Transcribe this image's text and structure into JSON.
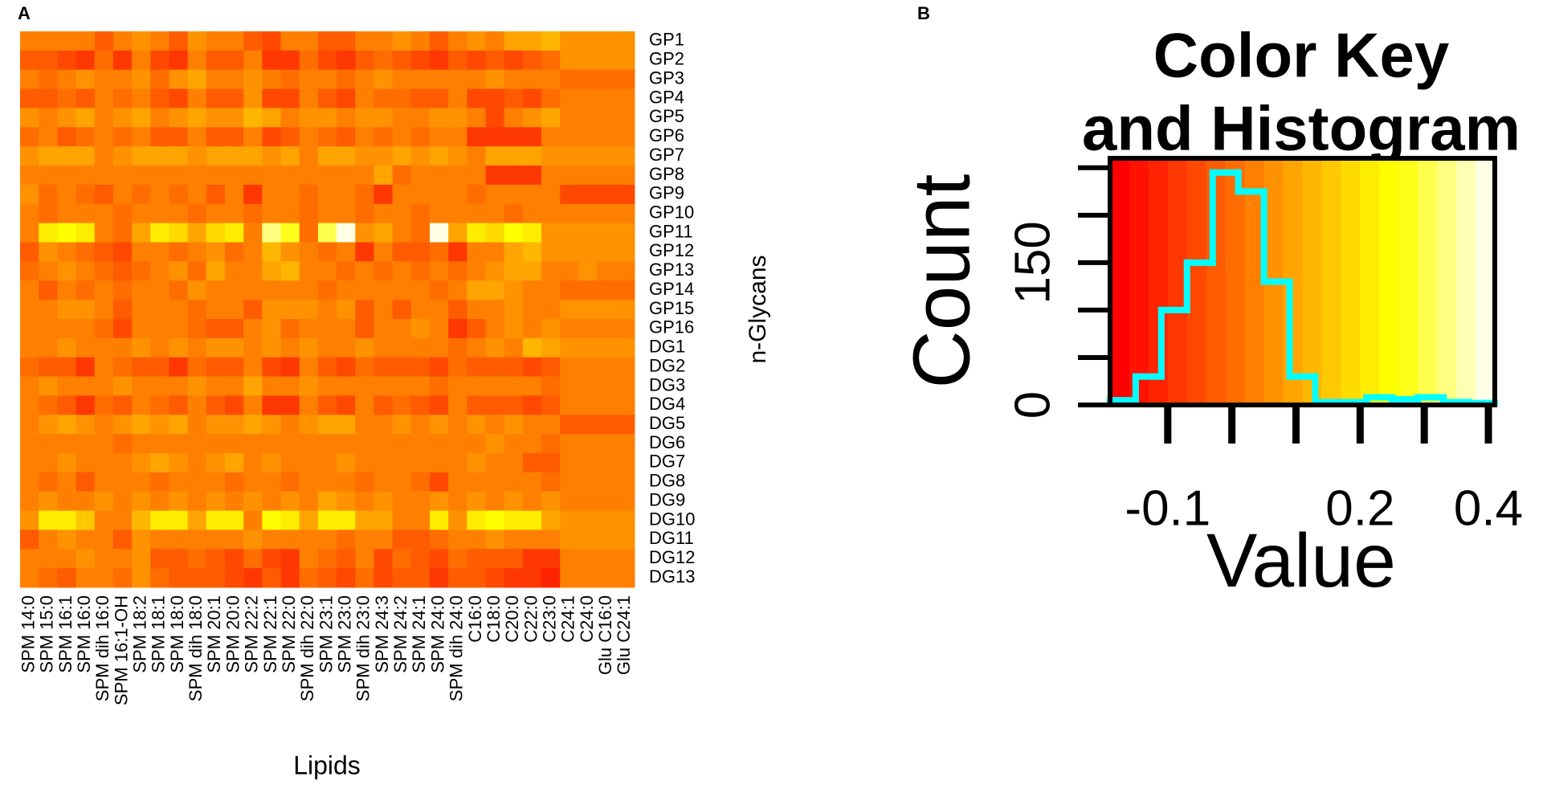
{
  "chart_data": [
    {
      "type": "heatmap",
      "panel_label": "A",
      "xlabel": "Lipids",
      "ylabel": "n-Glycans",
      "x_categories": [
        "SPM 14:0",
        "SPM 15:0",
        "SPM 16:1",
        "SPM 16:0",
        "SPM dih 16:0",
        "SPM 16:1-OH",
        "SPM 18:2",
        "SPM 18:1",
        "SPM 18:0",
        "SPM dih 18:0",
        "SPM 20:1",
        "SPM 20:0",
        "SPM 22:2",
        "SPM 22:1",
        "SPM 22:0",
        "SPM dih 22:0",
        "SPM 23:1",
        "SPM 23:0",
        "SPM dih 23:0",
        "SPM 24:3",
        "SPM 24:2",
        "SPM 24:1",
        "SPM 24:0",
        "SPM dih 24:0",
        "C16:0",
        "C18:0",
        "C20:0",
        "C22:0",
        "C23:0",
        "C24:1",
        "C24:0",
        "Glu C16:0",
        "Glu C24:1"
      ],
      "y_categories": [
        "GP1",
        "GP2",
        "GP3",
        "GP4",
        "GP5",
        "GP6",
        "GP7",
        "GP8",
        "GP9",
        "GP10",
        "GP11",
        "GP12",
        "GP13",
        "GP14",
        "GP15",
        "GP16",
        "DG1",
        "DG2",
        "DG3",
        "DG4",
        "DG5",
        "DG6",
        "DG7",
        "DG8",
        "DG9",
        "DG10",
        "DG11",
        "DG12",
        "DG13"
      ],
      "values": [
        [
          0.02,
          0.04,
          0.02,
          0.02,
          -0.02,
          0.04,
          0.05,
          0.02,
          -0.02,
          0.05,
          0.02,
          0.02,
          -0.03,
          -0.06,
          0.02,
          0.04,
          -0.03,
          -0.04,
          0.02,
          0.04,
          0.05,
          0.02,
          -0.02,
          0.04,
          0.06,
          0.02,
          0.08,
          0.1,
          0.11,
          0.06,
          0.06,
          0.06,
          0.06
        ],
        [
          -0.04,
          -0.03,
          -0.06,
          -0.1,
          0.0,
          -0.08,
          0.02,
          -0.06,
          -0.1,
          0.03,
          -0.04,
          -0.02,
          0.02,
          -0.09,
          -0.1,
          0.0,
          -0.05,
          -0.1,
          -0.02,
          0.0,
          -0.04,
          -0.06,
          -0.1,
          -0.04,
          -0.06,
          -0.04,
          -0.05,
          -0.03,
          0.0,
          0.06,
          0.06,
          0.06,
          0.06
        ],
        [
          0.04,
          0.0,
          0.04,
          0.06,
          0.02,
          0.04,
          0.06,
          0.0,
          0.06,
          0.08,
          0.02,
          0.04,
          0.07,
          0.02,
          0.0,
          0.04,
          0.02,
          0.0,
          0.04,
          0.05,
          0.02,
          0.02,
          0.04,
          0.02,
          0.04,
          0.06,
          0.02,
          0.04,
          0.02,
          0.0,
          0.0,
          0.0,
          0.0
        ],
        [
          -0.02,
          -0.02,
          0.0,
          -0.04,
          0.02,
          0.0,
          0.02,
          -0.02,
          -0.07,
          0.04,
          -0.04,
          -0.04,
          0.06,
          -0.07,
          -0.05,
          0.02,
          -0.03,
          -0.06,
          0.02,
          0.0,
          0.0,
          -0.02,
          -0.04,
          0.02,
          -0.06,
          -0.06,
          -0.03,
          -0.06,
          0.0,
          0.03,
          0.03,
          0.03,
          0.03
        ],
        [
          0.06,
          0.04,
          0.06,
          0.1,
          0.04,
          0.06,
          0.08,
          0.04,
          0.06,
          0.1,
          0.06,
          0.06,
          0.12,
          0.08,
          0.04,
          0.06,
          0.06,
          0.04,
          0.06,
          0.06,
          0.04,
          0.04,
          0.06,
          0.06,
          0.04,
          -0.06,
          0.04,
          0.06,
          0.08,
          0.04,
          0.04,
          0.04,
          0.04
        ],
        [
          0.0,
          0.02,
          -0.02,
          0.0,
          0.04,
          0.0,
          0.02,
          -0.02,
          -0.04,
          0.04,
          -0.02,
          -0.02,
          0.04,
          -0.06,
          -0.04,
          0.02,
          0.0,
          -0.04,
          0.02,
          0.0,
          0.02,
          0.0,
          0.04,
          0.02,
          -0.08,
          -0.1,
          -0.08,
          -0.1,
          0.02,
          0.04,
          0.04,
          0.04,
          0.04
        ],
        [
          0.06,
          0.1,
          0.1,
          0.08,
          0.04,
          0.06,
          0.08,
          0.1,
          0.1,
          0.06,
          0.08,
          0.1,
          0.08,
          0.06,
          0.08,
          0.04,
          0.08,
          0.1,
          0.06,
          0.06,
          0.08,
          0.06,
          0.08,
          0.06,
          0.04,
          0.1,
          0.1,
          0.1,
          0.06,
          0.06,
          0.06,
          0.06,
          0.06
        ],
        [
          0.04,
          0.02,
          0.04,
          0.02,
          0.04,
          0.02,
          0.02,
          0.04,
          0.02,
          0.04,
          0.04,
          0.02,
          0.04,
          0.04,
          0.02,
          0.02,
          0.04,
          0.02,
          0.04,
          0.08,
          0.0,
          0.02,
          0.04,
          0.02,
          0.02,
          -0.08,
          -0.1,
          -0.08,
          0.02,
          0.02,
          0.02,
          0.02,
          0.02
        ],
        [
          0.06,
          0.0,
          0.02,
          0.0,
          -0.04,
          0.04,
          0.0,
          0.04,
          0.0,
          0.02,
          -0.02,
          0.02,
          -0.08,
          0.02,
          0.04,
          0.0,
          0.04,
          0.02,
          0.0,
          -0.08,
          0.04,
          0.02,
          0.04,
          0.02,
          0.0,
          0.04,
          0.04,
          0.02,
          0.02,
          -0.05,
          -0.05,
          -0.05,
          -0.05
        ],
        [
          0.04,
          0.0,
          0.04,
          0.02,
          0.04,
          0.0,
          0.02,
          0.04,
          0.02,
          0.0,
          0.04,
          0.02,
          0.0,
          0.04,
          0.02,
          0.0,
          0.04,
          0.02,
          0.0,
          0.04,
          0.02,
          0.0,
          0.04,
          0.02,
          0.04,
          0.02,
          0.0,
          0.04,
          0.02,
          0.03,
          0.03,
          0.03,
          0.03
        ],
        [
          0.04,
          0.2,
          0.24,
          0.2,
          0.02,
          0.0,
          0.08,
          0.2,
          0.18,
          0.08,
          0.18,
          0.22,
          0.04,
          0.32,
          0.28,
          0.0,
          0.3,
          0.4,
          0.06,
          0.1,
          0.02,
          0.0,
          0.4,
          0.08,
          0.2,
          0.18,
          0.24,
          0.22,
          0.06,
          0.06,
          0.06,
          0.06,
          0.06
        ],
        [
          -0.04,
          0.06,
          0.04,
          0.0,
          -0.02,
          -0.06,
          0.04,
          0.02,
          0.0,
          0.04,
          0.06,
          0.0,
          0.04,
          0.12,
          0.06,
          0.02,
          0.0,
          0.04,
          -0.08,
          0.04,
          -0.02,
          -0.04,
          0.0,
          -0.08,
          0.04,
          0.02,
          0.08,
          0.12,
          0.06,
          0.06,
          0.06,
          0.06,
          0.06
        ],
        [
          0.0,
          0.04,
          0.06,
          0.02,
          0.0,
          -0.04,
          0.0,
          0.02,
          0.06,
          0.0,
          0.08,
          0.02,
          0.02,
          0.1,
          0.12,
          0.04,
          0.02,
          0.0,
          0.04,
          0.0,
          0.02,
          0.0,
          0.04,
          0.0,
          0.04,
          0.06,
          0.1,
          0.08,
          0.04,
          0.04,
          0.06,
          0.04,
          0.04
        ],
        [
          0.02,
          -0.04,
          0.02,
          0.0,
          0.04,
          0.0,
          0.04,
          0.04,
          0.0,
          0.06,
          0.04,
          0.02,
          0.04,
          0.02,
          0.04,
          0.02,
          0.0,
          0.02,
          0.04,
          0.02,
          0.04,
          0.02,
          0.0,
          0.04,
          0.08,
          0.1,
          0.06,
          0.04,
          0.02,
          0.0,
          0.0,
          0.0,
          0.0
        ],
        [
          0.04,
          0.04,
          0.06,
          0.06,
          0.04,
          -0.04,
          0.04,
          0.02,
          0.04,
          0.0,
          0.02,
          0.04,
          -0.02,
          0.06,
          0.06,
          0.06,
          0.04,
          0.06,
          -0.02,
          0.02,
          -0.02,
          0.02,
          0.04,
          -0.02,
          0.04,
          0.04,
          0.06,
          0.04,
          0.02,
          0.06,
          0.06,
          0.06,
          0.06
        ],
        [
          0.02,
          0.04,
          0.04,
          0.02,
          0.0,
          -0.06,
          0.04,
          0.02,
          0.04,
          0.0,
          -0.02,
          -0.02,
          0.04,
          0.06,
          0.0,
          0.02,
          0.04,
          0.04,
          -0.04,
          0.02,
          0.04,
          0.06,
          0.04,
          -0.08,
          -0.04,
          0.04,
          0.06,
          0.02,
          0.06,
          0.04,
          0.04,
          0.04,
          0.04
        ],
        [
          0.04,
          0.04,
          0.06,
          0.04,
          0.02,
          0.04,
          0.06,
          0.04,
          0.06,
          0.04,
          0.06,
          0.06,
          0.04,
          0.06,
          0.04,
          0.06,
          0.02,
          0.04,
          0.06,
          0.04,
          0.02,
          0.04,
          0.04,
          0.0,
          0.04,
          0.06,
          0.04,
          0.12,
          0.08,
          0.06,
          0.06,
          0.06,
          0.06
        ],
        [
          0.0,
          -0.02,
          -0.04,
          -0.08,
          0.02,
          0.0,
          -0.02,
          -0.04,
          -0.08,
          0.0,
          -0.04,
          -0.04,
          0.04,
          -0.06,
          -0.08,
          0.02,
          -0.04,
          -0.06,
          0.0,
          -0.04,
          -0.02,
          -0.04,
          -0.06,
          0.0,
          -0.02,
          -0.04,
          -0.04,
          -0.06,
          -0.02,
          0.02,
          0.02,
          0.02,
          0.02
        ],
        [
          0.04,
          0.06,
          0.04,
          0.02,
          0.04,
          0.06,
          0.04,
          0.02,
          0.04,
          0.06,
          0.04,
          0.02,
          0.08,
          0.04,
          0.02,
          0.06,
          0.04,
          0.02,
          0.04,
          0.04,
          0.02,
          0.04,
          0.0,
          0.04,
          0.02,
          0.04,
          0.02,
          0.04,
          0.0,
          0.04,
          0.04,
          0.04,
          0.04
        ],
        [
          0.02,
          0.0,
          -0.02,
          -0.08,
          0.0,
          -0.04,
          0.02,
          0.0,
          -0.04,
          0.02,
          -0.04,
          -0.06,
          0.04,
          -0.08,
          -0.08,
          0.02,
          -0.02,
          -0.06,
          0.02,
          -0.02,
          0.0,
          -0.04,
          -0.06,
          0.02,
          -0.02,
          -0.04,
          -0.04,
          -0.06,
          -0.04,
          0.04,
          0.04,
          0.04,
          0.04
        ],
        [
          0.04,
          0.06,
          0.08,
          0.06,
          0.02,
          0.06,
          0.08,
          0.06,
          0.08,
          0.04,
          0.06,
          0.06,
          0.08,
          0.06,
          0.04,
          0.06,
          0.08,
          0.1,
          0.04,
          0.02,
          0.06,
          0.04,
          0.06,
          0.02,
          0.06,
          0.04,
          0.06,
          0.04,
          0.02,
          -0.02,
          -0.02,
          -0.02,
          -0.02
        ],
        [
          0.04,
          0.02,
          0.04,
          0.02,
          0.04,
          0.0,
          0.04,
          0.02,
          0.04,
          0.02,
          0.04,
          0.02,
          0.04,
          0.02,
          0.04,
          0.02,
          0.04,
          0.02,
          0.04,
          0.02,
          0.04,
          0.02,
          0.04,
          0.02,
          0.04,
          0.06,
          0.02,
          0.04,
          0.0,
          0.04,
          0.04,
          0.04,
          0.04
        ],
        [
          0.02,
          0.04,
          0.06,
          0.04,
          0.02,
          0.04,
          0.06,
          0.08,
          0.06,
          0.04,
          0.06,
          0.08,
          0.04,
          0.06,
          0.04,
          0.02,
          0.04,
          0.06,
          0.02,
          0.04,
          0.02,
          0.04,
          0.02,
          0.04,
          0.06,
          0.04,
          0.02,
          -0.02,
          -0.04,
          0.04,
          0.04,
          0.04,
          0.04
        ],
        [
          0.02,
          0.0,
          0.02,
          -0.04,
          0.02,
          0.04,
          0.02,
          0.0,
          0.02,
          0.04,
          0.02,
          0.0,
          0.02,
          0.04,
          0.0,
          0.02,
          0.04,
          0.02,
          0.0,
          0.02,
          0.04,
          0.0,
          -0.06,
          0.02,
          0.02,
          0.04,
          0.02,
          0.04,
          0.0,
          0.03,
          0.03,
          0.03,
          0.03
        ],
        [
          0.04,
          0.06,
          0.04,
          0.02,
          0.06,
          0.04,
          0.06,
          0.04,
          0.06,
          0.04,
          0.06,
          0.04,
          0.06,
          0.04,
          0.06,
          0.04,
          0.1,
          0.06,
          0.04,
          0.06,
          0.02,
          0.04,
          0.06,
          0.04,
          0.06,
          0.04,
          0.06,
          0.04,
          0.06,
          0.04,
          0.04,
          0.04,
          0.04
        ],
        [
          0.06,
          0.2,
          0.22,
          0.16,
          0.04,
          0.02,
          0.12,
          0.2,
          0.22,
          0.1,
          0.22,
          0.22,
          0.04,
          0.24,
          0.22,
          0.08,
          0.2,
          0.22,
          0.1,
          0.1,
          0.02,
          0.02,
          0.22,
          0.06,
          0.2,
          0.24,
          0.2,
          0.22,
          0.1,
          0.06,
          0.06,
          0.06,
          0.06
        ],
        [
          -0.04,
          0.04,
          0.06,
          0.04,
          0.02,
          -0.04,
          0.06,
          0.04,
          0.04,
          0.02,
          0.04,
          0.04,
          0.06,
          0.04,
          0.04,
          0.02,
          0.04,
          0.0,
          0.02,
          0.04,
          -0.04,
          -0.04,
          0.0,
          0.02,
          0.04,
          0.06,
          0.04,
          0.02,
          0.04,
          0.06,
          0.06,
          0.06,
          0.06
        ],
        [
          0.04,
          0.02,
          0.04,
          0.06,
          0.02,
          0.04,
          0.06,
          -0.02,
          -0.04,
          0.0,
          -0.04,
          -0.06,
          0.0,
          -0.06,
          -0.08,
          0.02,
          0.0,
          -0.04,
          0.02,
          -0.06,
          0.0,
          -0.02,
          -0.06,
          0.0,
          -0.02,
          -0.04,
          -0.04,
          -0.08,
          -0.1,
          0.04,
          0.04,
          0.04,
          0.04
        ],
        [
          0.02,
          0.0,
          -0.02,
          0.02,
          0.04,
          0.0,
          0.06,
          0.0,
          -0.02,
          -0.04,
          -0.02,
          -0.06,
          -0.08,
          -0.04,
          -0.08,
          0.0,
          -0.04,
          -0.06,
          0.0,
          -0.06,
          -0.02,
          -0.04,
          -0.1,
          -0.04,
          -0.04,
          -0.06,
          -0.08,
          -0.1,
          -0.12,
          0.04,
          0.04,
          0.04,
          0.04
        ]
      ]
    },
    {
      "type": "histogram",
      "panel_label": "B",
      "title": [
        "Color Key",
        "and Histogram"
      ],
      "xlabel": "Value",
      "ylabel": "Count",
      "bins": [
        -0.19,
        -0.15,
        -0.11,
        -0.07,
        -0.03,
        0.01,
        0.05,
        0.09,
        0.13,
        0.17,
        0.21,
        0.25,
        0.29,
        0.33,
        0.37,
        0.41
      ],
      "counts": [
        5,
        30,
        100,
        150,
        245,
        225,
        130,
        30,
        3,
        3,
        8,
        6,
        8,
        3,
        2
      ],
      "color": "#00ffff",
      "xlim": [
        -0.19,
        0.41
      ],
      "xticks": [
        -0.1,
        0.2,
        0.4
      ],
      "xminor_ticks": [
        0,
        0.1,
        0.3
      ],
      "ylim": [
        0,
        260
      ],
      "yticks": [
        0,
        150
      ],
      "yminor_ticks": [
        50,
        100,
        200,
        250
      ]
    }
  ]
}
